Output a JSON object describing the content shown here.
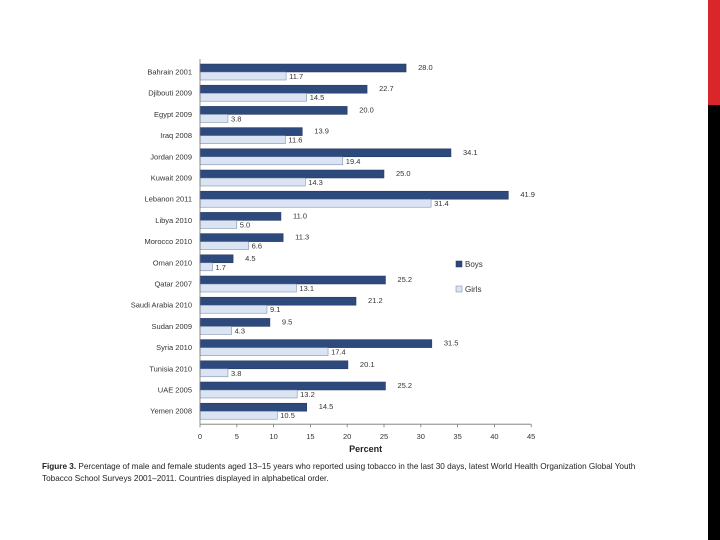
{
  "chart_data": {
    "type": "bar",
    "orientation": "horizontal",
    "categories": [
      "Bahrain 2001",
      "Djibouti 2009",
      "Egypt 2009",
      "Iraq 2008",
      "Jordan 2009",
      "Kuwait 2009",
      "Lebanon 2011",
      "Libya 2010",
      "Morocco 2010",
      "Oman 2010",
      "Qatar 2007",
      "Saudi Arabia 2010",
      "Sudan 2009",
      "Syria 2010",
      "Tunisia 2010",
      "UAE 2005",
      "Yemen 2008"
    ],
    "series": [
      {
        "name": "Boys",
        "color": "#2e4a7d",
        "values": [
          28.0,
          22.7,
          20.0,
          13.9,
          34.1,
          25.0,
          41.9,
          11.0,
          11.3,
          4.5,
          25.2,
          21.2,
          9.5,
          31.5,
          20.1,
          25.2,
          14.5
        ]
      },
      {
        "name": "Girls",
        "color": "#dbe4f3",
        "values": [
          11.7,
          14.5,
          3.8,
          11.6,
          19.4,
          14.3,
          31.4,
          5.0,
          6.6,
          1.7,
          13.1,
          9.1,
          4.3,
          17.4,
          3.8,
          13.2,
          10.5
        ]
      }
    ],
    "value_labels": {
      "Boys": [
        "28.0",
        "22.7",
        "20.0",
        "13.9",
        "34.1",
        "25.0",
        "41.9",
        "11.0",
        "11.3",
        "4.5",
        "25.2",
        "21.2",
        "9.5",
        "31.5",
        "20.1",
        "25.2",
        "14.5"
      ],
      "Girls": [
        "11.7",
        "14.5",
        "3.8",
        "11.6",
        "19.4",
        "14.3",
        "31.4",
        "5.0",
        "6.6",
        "1.7",
        "13.1",
        "9.1",
        "4.3",
        "17.4",
        "3.8",
        "13.2",
        "10.5"
      ]
    },
    "xticks": [
      "0",
      "5",
      "10",
      "15",
      "20",
      "25",
      "30",
      "35",
      "40",
      "45"
    ],
    "xlim": [
      0,
      45
    ],
    "xlabel": "Percent",
    "legend_position": "right"
  },
  "caption": {
    "label": "Figure 3.",
    "text": "Percentage of male and female students aged 13–15 years who reported using tobacco in the last 30 days, latest World Health Organization Global Youth Tobacco School Surveys 2001–2011. Countries displayed in alphabetical order."
  },
  "colors": {
    "accent_red": "#d9262b",
    "accent_black": "#000000",
    "boys": "#2e4a7d",
    "girls": "#dbe4f3"
  }
}
